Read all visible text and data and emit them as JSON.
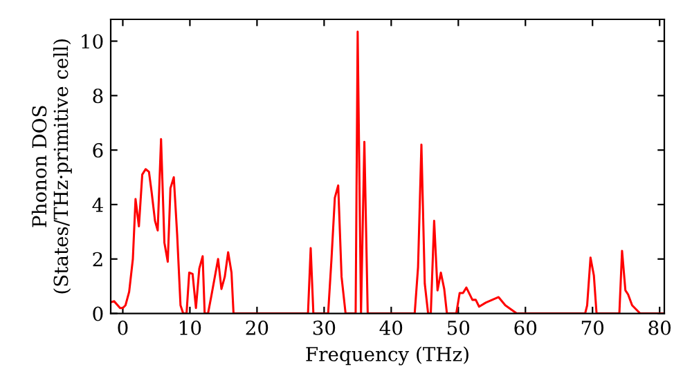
{
  "chart_data": {
    "type": "line",
    "xlabel": "Frequency (THz)",
    "ylabel": "Phonon DOS\n(States/THz·primitive cell)",
    "xlim": [
      -1.8,
      80.7
    ],
    "ylim": [
      0,
      10.8
    ],
    "xticks": [
      0,
      10,
      20,
      30,
      40,
      50,
      60,
      70,
      80
    ],
    "yticks": [
      0,
      2,
      4,
      6,
      8,
      10
    ],
    "grid": false,
    "legend": false,
    "marker": "none",
    "line_style": "solid",
    "series": [
      {
        "color": "#ff0000",
        "x": [
          -1.8,
          -1.3,
          -0.4,
          0,
          0.4,
          0.95,
          1.5,
          1.9,
          2.4,
          2.9,
          3.4,
          3.9,
          4.3,
          4.8,
          5.2,
          5.7,
          6.2,
          6.7,
          7.1,
          7.6,
          8.1,
          8.6,
          9.0,
          9.5,
          9.9,
          10.4,
          10.9,
          11.4,
          11.9,
          12.2,
          12.7,
          13.2,
          14.2,
          14.7,
          15.2,
          15.7,
          16.2,
          16.5,
          27.6,
          28.0,
          28.4,
          30.6,
          31.1,
          31.6,
          32.1,
          32.6,
          33.2,
          34.7,
          35.0,
          35.5,
          36.0,
          36.5,
          43.5,
          44.0,
          44.5,
          45.0,
          45.5,
          45.9,
          46.4,
          46.9,
          47.4,
          47.9,
          48.3,
          49.7,
          50.2,
          50.7,
          51.2,
          52.1,
          52.6,
          53.1,
          54.1,
          56.0,
          57.0,
          58.7,
          68.9,
          69.2,
          69.7,
          70.2,
          70.6,
          74.0,
          74.4,
          74.9,
          75.3,
          75.9,
          77.1,
          80.7
        ],
        "values": [
          0.41,
          0.45,
          0.2,
          0.2,
          0.3,
          0.8,
          2.0,
          4.2,
          3.2,
          5.1,
          5.3,
          5.2,
          4.45,
          3.4,
          3.05,
          6.4,
          2.6,
          1.9,
          4.6,
          5.0,
          2.9,
          0.3,
          0,
          0,
          1.5,
          1.45,
          0.2,
          1.65,
          2.1,
          0,
          0,
          0.65,
          2.0,
          0.9,
          1.35,
          2.25,
          1.5,
          0,
          0,
          2.4,
          0,
          0,
          2.0,
          4.25,
          4.7,
          1.35,
          0,
          0,
          10.35,
          0,
          6.3,
          0,
          0,
          1.7,
          6.2,
          1.1,
          0,
          0,
          3.4,
          0.85,
          1.5,
          0.9,
          0,
          0,
          0.75,
          0.75,
          0.95,
          0.5,
          0.5,
          0.25,
          0.4,
          0.6,
          0.3,
          0,
          0,
          0.3,
          2.05,
          1.4,
          0,
          0,
          2.3,
          0.85,
          0.7,
          0.3,
          0,
          0
        ]
      }
    ]
  }
}
